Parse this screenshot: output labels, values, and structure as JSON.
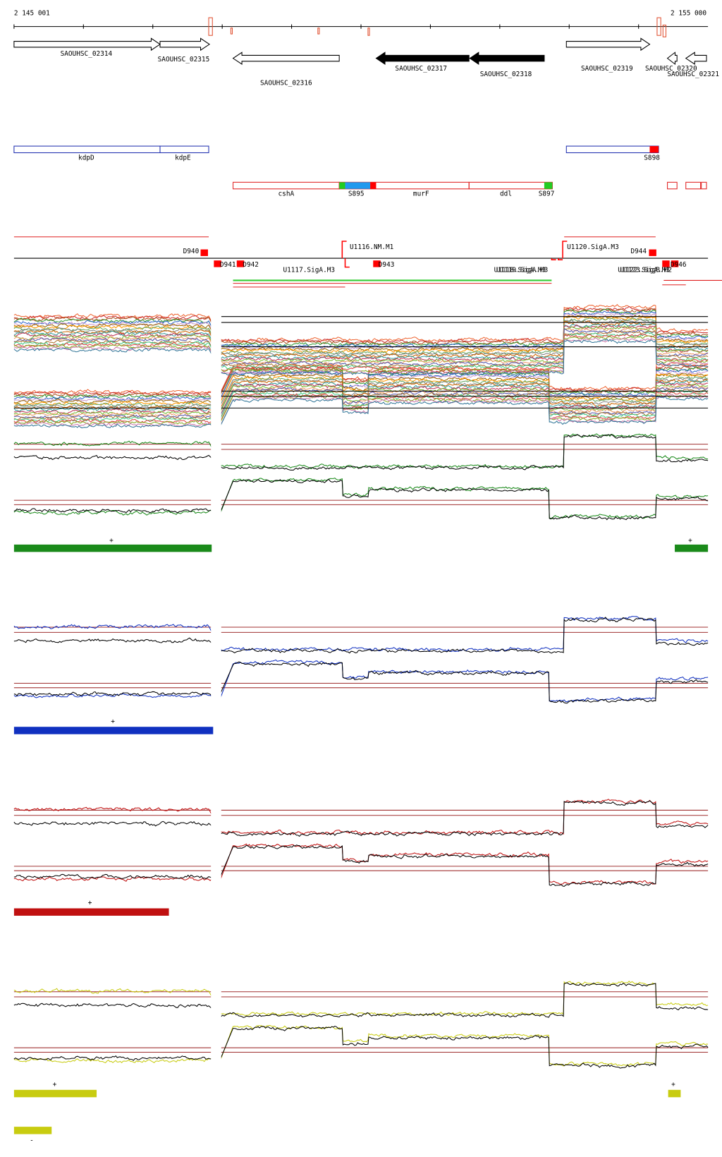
{
  "ruler": {
    "start": "2 145 001",
    "end": "2 155 000"
  },
  "genes": [
    "SAOUHSC_02314",
    "SAOUHSC_02315",
    "SAOUHSC_02316",
    "SAOUHSC_02317",
    "SAOUHSC_02318",
    "SAOUHSC_02319",
    "SAOUHSC_02320",
    "SAOUHSC_02321"
  ],
  "operons": [
    "kdpD",
    "kdpE",
    "S898",
    "cshA",
    "S895",
    "murF",
    "ddl",
    "S897"
  ],
  "promoters": [
    "D940",
    "D941",
    "D942",
    "U1116.NM.M1",
    "U1117.SigA.M3",
    "D943",
    "U1118.SigA.M3",
    "U1119.SigA.M3",
    "U1120.SigA.M3",
    "D944",
    "U1122.SigA.M3",
    "U1123.SigB.M2",
    "D946"
  ],
  "conditions": [
    "+",
    "+",
    "+",
    "+",
    "+",
    "+",
    "-"
  ]
}
